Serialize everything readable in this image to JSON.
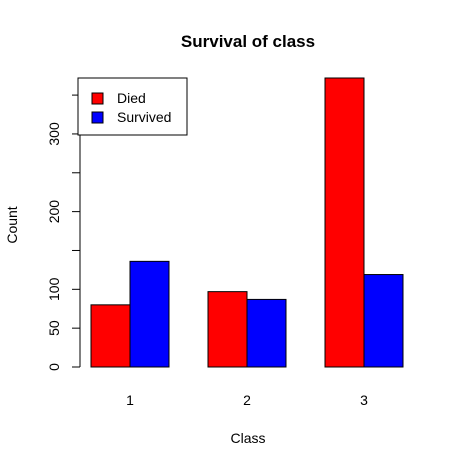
{
  "chart_data": {
    "type": "bar",
    "title": "Survival of class",
    "xlabel": "Class",
    "ylabel": "Count",
    "categories": [
      "1",
      "2",
      "3"
    ],
    "series": [
      {
        "name": "Died",
        "color": "#ff0000",
        "values": [
          80,
          97,
          372
        ]
      },
      {
        "name": "Survived",
        "color": "#0000ff",
        "values": [
          136,
          87,
          119
        ]
      }
    ],
    "y_ticks": [
      0,
      50,
      100,
      200,
      300
    ],
    "y_tick_labels": [
      "0",
      "50",
      "100",
      "200",
      "300"
    ],
    "y_minor_ticks": [
      150,
      250,
      350
    ],
    "ylim": [
      0,
      372
    ],
    "grid": false,
    "legend_position": "top-left"
  }
}
